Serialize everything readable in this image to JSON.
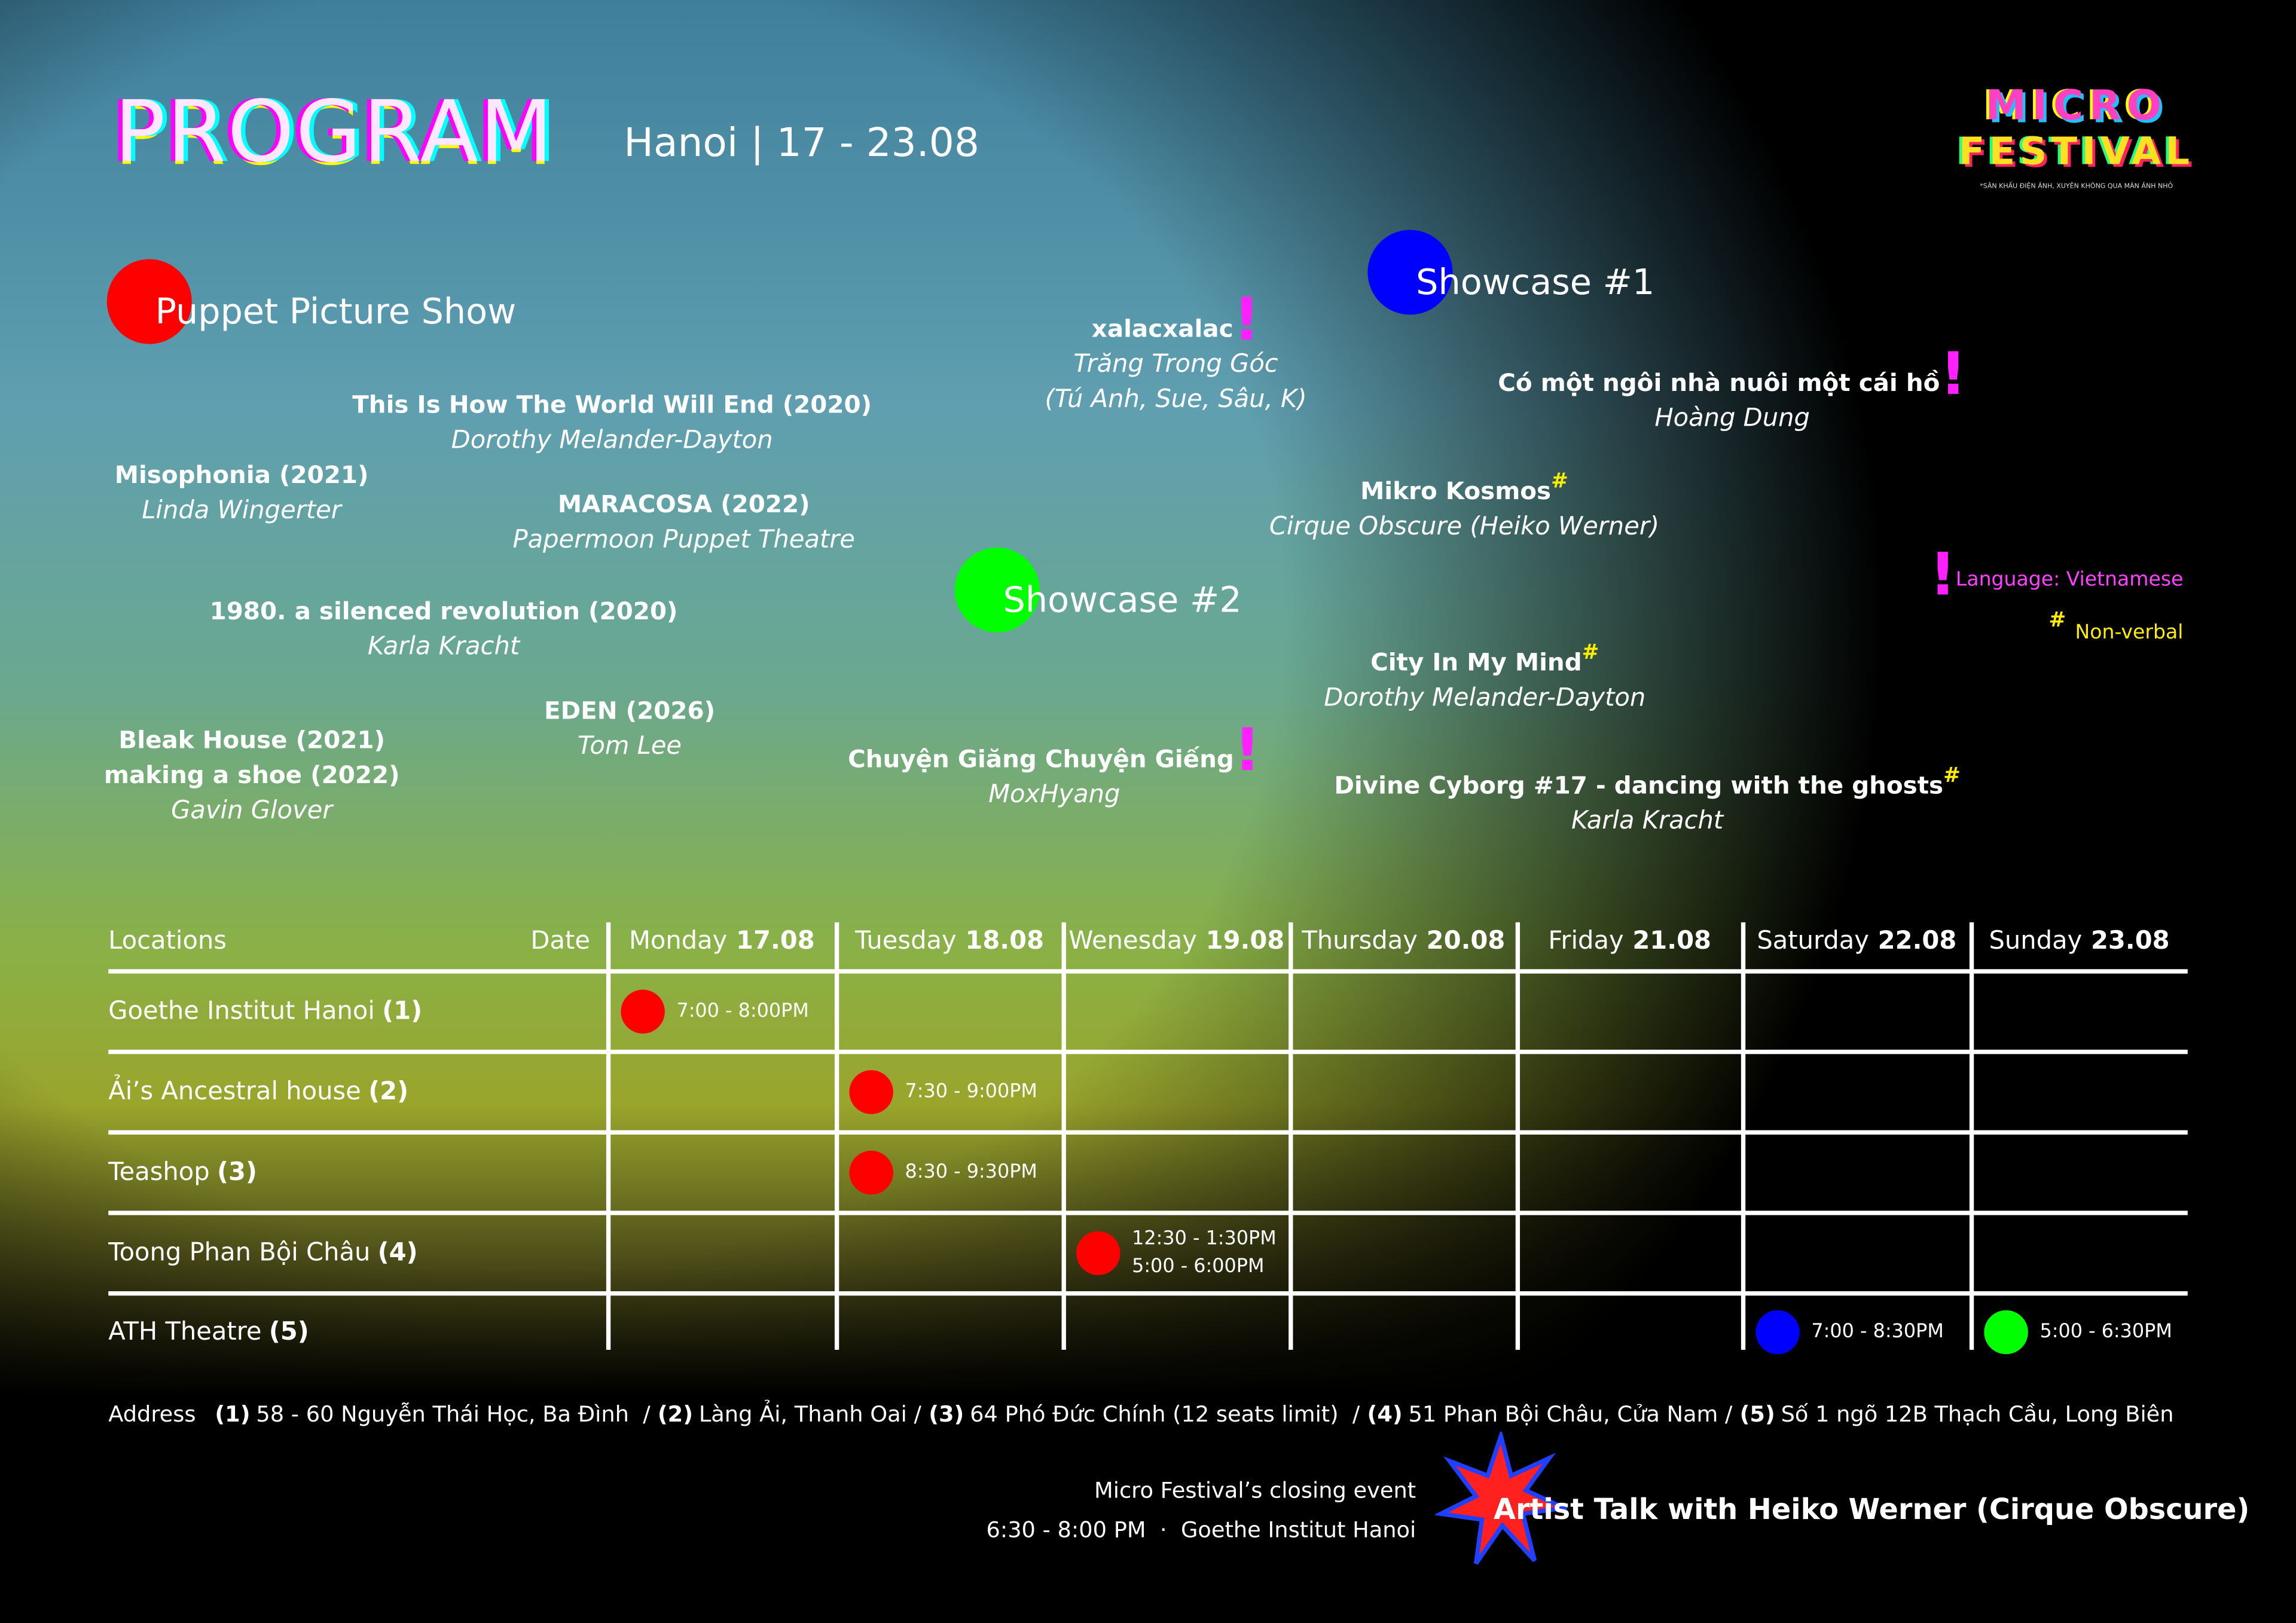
{
  "header": {
    "title": "PROGRAM",
    "subtitle": "Hanoi | 17 - 23.08"
  },
  "logo": {
    "line1": "MICRO",
    "line2": "FESTIVAL",
    "tagline": "*SÂN KHẤU ĐIỆN ẢNH, XUYÊN KHÔNG QUA MÀN ẢNH NHỎ"
  },
  "puppet": {
    "title": "Puppet Picture Show",
    "items": [
      {
        "titles": [
          "This Is How The World Will End (2020)"
        ],
        "artists": [
          "Dorothy Melander-Dayton"
        ]
      },
      {
        "titles": [
          "Misophonia (2021)"
        ],
        "artists": [
          "Linda Wingerter"
        ]
      },
      {
        "titles": [
          "MARACOSA (2022)"
        ],
        "artists": [
          "Papermoon Puppet Theatre"
        ]
      },
      {
        "titles": [
          "1980. a silenced revolution (2020)"
        ],
        "artists": [
          "Karla Kracht"
        ]
      },
      {
        "titles": [
          "EDEN (2026)"
        ],
        "artists": [
          "Tom Lee"
        ]
      },
      {
        "titles": [
          "Bleak House (2021)",
          "making a shoe (2022)"
        ],
        "artists": [
          "Gavin Glover"
        ]
      }
    ]
  },
  "showcase1": {
    "title": "Showcase #1",
    "items": [
      {
        "titles": [
          "xalacxalac"
        ],
        "mark": "!",
        "artists": [
          "Trăng Trong Góc",
          "(Tú Anh, Sue, Sâu, K)"
        ]
      },
      {
        "titles": [
          "Có một ngôi nhà nuôi một cái hồ"
        ],
        "mark": "!",
        "artists": [
          "Hoàng Dung"
        ]
      },
      {
        "titles": [
          "Mikro Kosmos"
        ],
        "mark": "#",
        "artists": [
          "Cirque Obscure (Heiko Werner)"
        ]
      }
    ]
  },
  "showcase2": {
    "title": "Showcase #2",
    "items": [
      {
        "titles": [
          "City In My Mind"
        ],
        "mark": "#",
        "artists": [
          "Dorothy Melander-Dayton"
        ]
      },
      {
        "titles": [
          "Chuyện Giăng Chuyện Giếng"
        ],
        "mark": "!",
        "artists": [
          "MoxHyang"
        ]
      },
      {
        "titles": [
          "Divine Cyborg #17 - dancing with the ghosts"
        ],
        "mark": "#",
        "artists": [
          "Karla Kracht"
        ]
      }
    ]
  },
  "legend": [
    {
      "mark": "!",
      "label": "Language: Vietnamese"
    },
    {
      "mark": "#",
      "label": "Non-verbal"
    }
  ],
  "table": {
    "locations_header": "Locations",
    "date_header": "Date",
    "days": [
      {
        "name": "Monday",
        "date": "17.08"
      },
      {
        "name": "Tuesday",
        "date": "18.08"
      },
      {
        "name": "Wenesday",
        "date": "19.08"
      },
      {
        "name": "Thursday",
        "date": "20.08"
      },
      {
        "name": "Friday",
        "date": "21.08"
      },
      {
        "name": "Saturday",
        "date": "22.08"
      },
      {
        "name": "Sunday",
        "date": "23.08"
      }
    ],
    "rows": [
      {
        "name": "Goethe Institut Hanoi",
        "number": "(1)",
        "cells": [
          {
            "times": [
              "7:00 - 8:00PM"
            ],
            "color": "#ff0000"
          },
          null,
          null,
          null,
          null,
          null,
          null
        ]
      },
      {
        "name": "Ải’s Ancestral house",
        "number": "(2)",
        "cells": [
          null,
          {
            "times": [
              "7:30 - 9:00PM"
            ],
            "color": "#ff0000"
          },
          null,
          null,
          null,
          null,
          null
        ]
      },
      {
        "name": "Teashop",
        "number": "(3)",
        "cells": [
          null,
          {
            "times": [
              "8:30 - 9:30PM"
            ],
            "color": "#ff0000"
          },
          null,
          null,
          null,
          null,
          null
        ]
      },
      {
        "name": "Toong Phan Bội Châu",
        "number": "(4)",
        "cells": [
          null,
          null,
          {
            "times": [
              "12:30 - 1:30PM",
              "5:00 - 6:00PM"
            ],
            "color": "#ff0000"
          },
          null,
          null,
          null,
          null
        ]
      },
      {
        "name": "ATH Theatre",
        "number": "(5)",
        "cells": [
          null,
          null,
          null,
          null,
          null,
          {
            "times": [
              "7:00 - 8:30PM"
            ],
            "color": "#0000ff"
          },
          {
            "times": [
              "5:00 - 6:30PM"
            ],
            "color": "#00ff00"
          }
        ]
      }
    ]
  },
  "address": {
    "label": "Address",
    "entries": [
      {
        "number": "(1)",
        "text": "58 - 60 Nguyễn Thái Học, Ba Đình  /"
      },
      {
        "number": "(2)",
        "text": "Làng Ải, Thanh Oai /"
      },
      {
        "number": "(3)",
        "text": "64 Phó Đức Chính (12 seats limit)  /"
      },
      {
        "number": "(4)",
        "text": "51 Phan Bội Châu, Cửa Nam /"
      },
      {
        "number": "(5)",
        "text": "Số 1 ngõ 12B Thạch Cầu, Long Biên"
      }
    ]
  },
  "closing": {
    "label": "Micro Festival’s closing event",
    "time": "6:30 - 8:00 PM  ·  Goethe Institut Hanoi",
    "title": "Artist Talk with Heiko Werner (Cirque Obscure)"
  }
}
